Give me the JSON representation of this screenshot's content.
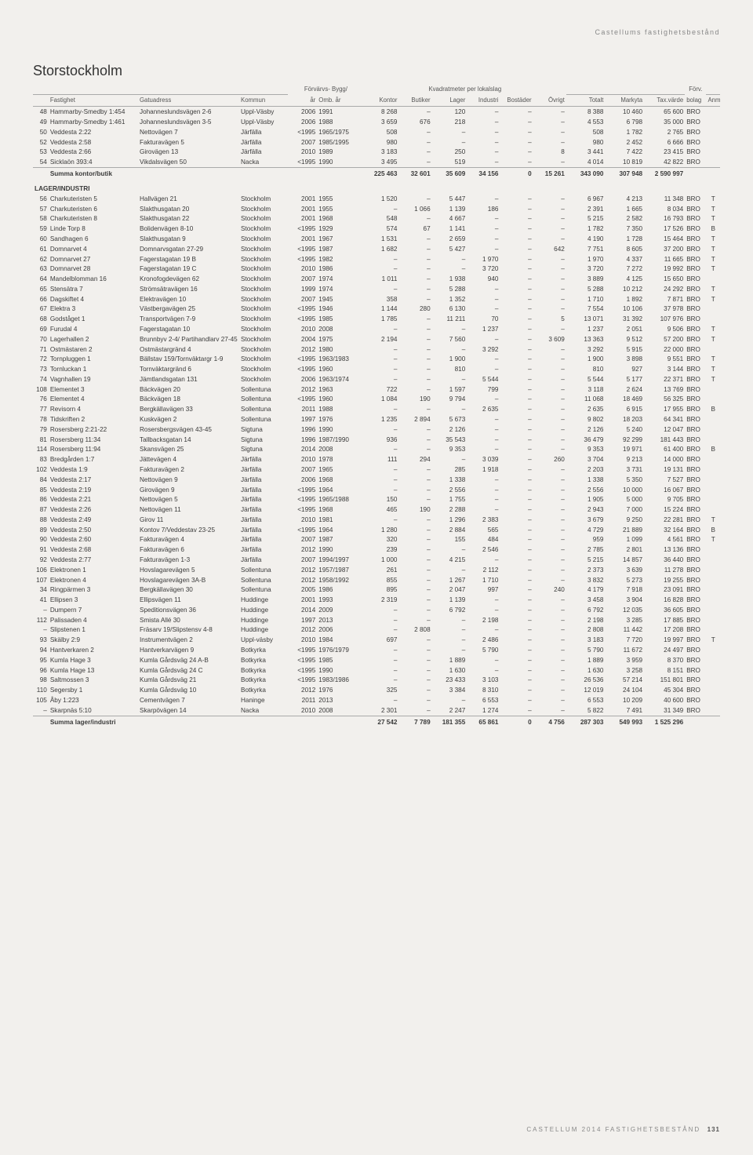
{
  "header_tag": "Castellums fastighetsbestånd",
  "region": "Storstockholm",
  "footer": "CASTELLUM 2014 FASTIGHETSBESTÅND",
  "page_num": "131",
  "col_groups": {
    "g1": "Förvärvs- Bygg/",
    "g2": "Kvadratmeter per lokalslag",
    "g3": "Förv."
  },
  "cols": {
    "fastighet": "Fastighet",
    "gata": "Gatuadress",
    "kommun": "Kommun",
    "ar": "år",
    "omb": "Omb. år",
    "kontor": "Kontor",
    "butiker": "Butiker",
    "lager": "Lager",
    "industri": "Industri",
    "bostader": "Bostäder",
    "ovrigt": "Övrigt",
    "totalt": "Totalt",
    "markyta": "Markyta",
    "taxv": "Tax.värde",
    "bolag": "bolag",
    "anm": "Anm"
  },
  "section_lager": "LAGER/INDUSTRI",
  "sum_kontor": "Summa kontor/butik",
  "sum_lager": "Summa lager/industri",
  "rows_top": [
    [
      "48",
      "Hammarby-Smedby 1:454",
      "Johanneslundsvägen 2-6",
      "Uppl-Väsby",
      "2006",
      "1991",
      "8 268",
      "–",
      "120",
      "–",
      "–",
      "–",
      "8 388",
      "10 460",
      "65 600",
      "BRO",
      ""
    ],
    [
      "49",
      "Hammarby-Smedby 1:461",
      "Johanneslundsvägen 3-5",
      "Uppl-Väsby",
      "2006",
      "1988",
      "3 659",
      "676",
      "218",
      "–",
      "–",
      "–",
      "4 553",
      "6 798",
      "35 000",
      "BRO",
      ""
    ],
    [
      "50",
      "Veddesta 2:22",
      "Nettovägen 7",
      "Järfälla",
      "<1995",
      "1965/1975",
      "508",
      "–",
      "–",
      "–",
      "–",
      "–",
      "508",
      "1 782",
      "2 765",
      "BRO",
      ""
    ],
    [
      "52",
      "Veddesta 2:58",
      "Fakturavägen 5",
      "Järfälla",
      "2007",
      "1985/1995",
      "980",
      "–",
      "–",
      "–",
      "–",
      "–",
      "980",
      "2 452",
      "6 666",
      "BRO",
      ""
    ],
    [
      "53",
      "Veddesta 2:66",
      "Girovägen 13",
      "Järfälla",
      "2010",
      "1989",
      "3 183",
      "–",
      "250",
      "–",
      "–",
      "8",
      "3 441",
      "7 422",
      "23 415",
      "BRO",
      ""
    ],
    [
      "54",
      "Sicklaön 393:4",
      "Vikdalsvägen 50",
      "Nacka",
      "<1995",
      "1990",
      "3 495",
      "–",
      "519",
      "–",
      "–",
      "–",
      "4 014",
      "10 819",
      "42 822",
      "BRO",
      ""
    ]
  ],
  "sum_top": [
    "",
    "",
    "",
    "",
    "",
    "225 463",
    "32 601",
    "35 609",
    "34 156",
    "0",
    "15 261",
    "343 090",
    "307 948",
    "2 590 997",
    "",
    ""
  ],
  "rows_lager": [
    [
      "56",
      "Charkuteristen 5",
      "Hallvägen 21",
      "Stockholm",
      "2001",
      "1955",
      "1 520",
      "–",
      "5 447",
      "–",
      "–",
      "–",
      "6 967",
      "4 213",
      "11 348",
      "BRO",
      "T"
    ],
    [
      "57",
      "Charkuteristen 6",
      "Slakthusgatan 20",
      "Stockholm",
      "2001",
      "1955",
      "–",
      "1 066",
      "1 139",
      "186",
      "–",
      "–",
      "2 391",
      "1 665",
      "8 034",
      "BRO",
      "T"
    ],
    [
      "58",
      "Charkuteristen 8",
      "Slakthusgatan 22",
      "Stockholm",
      "2001",
      "1968",
      "548",
      "–",
      "4 667",
      "–",
      "–",
      "–",
      "5 215",
      "2 582",
      "16 793",
      "BRO",
      "T"
    ],
    [
      "59",
      "Linde Torp 8",
      "Bolidenvägen 8-10",
      "Stockholm",
      "<1995",
      "1929",
      "574",
      "67",
      "1 141",
      "–",
      "–",
      "–",
      "1 782",
      "7 350",
      "17 526",
      "BRO",
      "B"
    ],
    [
      "60",
      "Sandhagen 6",
      "Slakthusgatan 9",
      "Stockholm",
      "2001",
      "1967",
      "1 531",
      "–",
      "2 659",
      "–",
      "–",
      "–",
      "4 190",
      "1 728",
      "15 464",
      "BRO",
      "T"
    ],
    [
      "61",
      "Domnarvet 4",
      "Domnarvsgatan 27-29",
      "Stockholm",
      "<1995",
      "1987",
      "1 682",
      "–",
      "5 427",
      "–",
      "–",
      "642",
      "7 751",
      "8 605",
      "37 200",
      "BRO",
      "T"
    ],
    [
      "62",
      "Domnarvet 27",
      "Fagerstagatan 19 B",
      "Stockholm",
      "<1995",
      "1982",
      "–",
      "–",
      "–",
      "1 970",
      "–",
      "–",
      "1 970",
      "4 337",
      "11 665",
      "BRO",
      "T"
    ],
    [
      "63",
      "Domnarvet 28",
      "Fagerstagatan 19 C",
      "Stockholm",
      "2010",
      "1986",
      "–",
      "–",
      "–",
      "3 720",
      "–",
      "–",
      "3 720",
      "7 272",
      "19 992",
      "BRO",
      "T"
    ],
    [
      "64",
      "Mandelblomman 16",
      "Kronofogdevägen 62",
      "Stockholm",
      "2007",
      "1974",
      "1 011",
      "–",
      "1 938",
      "940",
      "–",
      "–",
      "3 889",
      "4 125",
      "15 650",
      "BRO",
      ""
    ],
    [
      "65",
      "Stensätra 7",
      "Strömsätravägen 16",
      "Stockholm",
      "1999",
      "1974",
      "–",
      "–",
      "5 288",
      "–",
      "–",
      "–",
      "5 288",
      "10 212",
      "24 292",
      "BRO",
      "T"
    ],
    [
      "66",
      "Dagskiftet 4",
      "Elektravägen 10",
      "Stockholm",
      "2007",
      "1945",
      "358",
      "–",
      "1 352",
      "–",
      "–",
      "–",
      "1 710",
      "1 892",
      "7 871",
      "BRO",
      "T"
    ],
    [
      "67",
      "Elektra 3",
      "Västbergavägen 25",
      "Stockholm",
      "<1995",
      "1946",
      "1 144",
      "280",
      "6 130",
      "–",
      "–",
      "–",
      "7 554",
      "10 106",
      "37 978",
      "BRO",
      ""
    ],
    [
      "68",
      "Godståget 1",
      "Transportvägen 7-9",
      "Stockholm",
      "<1995",
      "1985",
      "1 785",
      "–",
      "11 211",
      "70",
      "–",
      "5",
      "13 071",
      "31 392",
      "107 976",
      "BRO",
      ""
    ],
    [
      "69",
      "Furudal 4",
      "Fagerstagatan 10",
      "Stockholm",
      "2010",
      "2008",
      "–",
      "–",
      "–",
      "1 237",
      "–",
      "–",
      "1 237",
      "2 051",
      "9 506",
      "BRO",
      "T"
    ],
    [
      "70",
      "Lagerhallen 2",
      "Brunnbyv 2-4/ Partihandlarv 27-45",
      "Stockholm",
      "2004",
      "1975",
      "2 194",
      "–",
      "7 560",
      "–",
      "–",
      "3 609",
      "13 363",
      "9 512",
      "57 200",
      "BRO",
      "T"
    ],
    [
      "71",
      "Ostmästaren 2",
      "Ostmästargränd 4",
      "Stockholm",
      "2012",
      "1980",
      "–",
      "–",
      "–",
      "3 292",
      "–",
      "–",
      "3 292",
      "5 915",
      "22 000",
      "BRO",
      ""
    ],
    [
      "72",
      "Tornpluggen 1",
      "Bällstav 159/Tornväktargr 1-9",
      "Stockholm",
      "<1995",
      "1963/1983",
      "–",
      "–",
      "1 900",
      "–",
      "–",
      "–",
      "1 900",
      "3 898",
      "9 551",
      "BRO",
      "T"
    ],
    [
      "73",
      "Tornluckan 1",
      "Tornväktargränd 6",
      "Stockholm",
      "<1995",
      "1960",
      "–",
      "–",
      "810",
      "–",
      "–",
      "–",
      "810",
      "927",
      "3 144",
      "BRO",
      "T"
    ],
    [
      "74",
      "Vagnhallen 19",
      "Jämtlandsgatan 131",
      "Stockholm",
      "2006",
      "1963/1974",
      "–",
      "–",
      "–",
      "5 544",
      "–",
      "–",
      "5 544",
      "5 177",
      "22 371",
      "BRO",
      "T"
    ],
    [
      "108",
      "Elementet 3",
      "Bäckvägen 20",
      "Sollentuna",
      "2012",
      "1963",
      "722",
      "–",
      "1 597",
      "799",
      "–",
      "–",
      "3 118",
      "2 624",
      "13 769",
      "BRO",
      ""
    ],
    [
      "76",
      "Elementet 4",
      "Bäckvägen 18",
      "Sollentuna",
      "<1995",
      "1960",
      "1 084",
      "190",
      "9 794",
      "–",
      "–",
      "–",
      "11 068",
      "18 469",
      "56 325",
      "BRO",
      ""
    ],
    [
      "77",
      "Revisorn 4",
      "Bergkällavägen 33",
      "Sollentuna",
      "2011",
      "1988",
      "–",
      "–",
      "–",
      "2 635",
      "–",
      "–",
      "2 635",
      "6 915",
      "17 955",
      "BRO",
      "B"
    ],
    [
      "78",
      "Tidskriften 2",
      "Kuskvägen 2",
      "Sollentuna",
      "1997",
      "1976",
      "1 235",
      "2 894",
      "5 673",
      "–",
      "–",
      "–",
      "9 802",
      "18 203",
      "64 341",
      "BRO",
      ""
    ],
    [
      "79",
      "Rosersberg 2:21-22",
      "Rosersbergsvägen 43-45",
      "Sigtuna",
      "1996",
      "1990",
      "–",
      "–",
      "2 126",
      "–",
      "–",
      "–",
      "2 126",
      "5 240",
      "12 047",
      "BRO",
      ""
    ],
    [
      "81",
      "Rosersberg 11:34",
      "Tallbacksgatan 14",
      "Sigtuna",
      "1996",
      "1987/1990",
      "936",
      "–",
      "35 543",
      "–",
      "–",
      "–",
      "36 479",
      "92 299",
      "181 443",
      "BRO",
      ""
    ],
    [
      "114",
      "Rosersberg 11:94",
      "Skansvägen 25",
      "Sigtuna",
      "2014",
      "2008",
      "–",
      "–",
      "9 353",
      "–",
      "–",
      "–",
      "9 353",
      "19 971",
      "61 400",
      "BRO",
      "B"
    ],
    [
      "83",
      "Bredgården 1:7",
      "Jättevägen 4",
      "Järfälla",
      "2010",
      "1978",
      "111",
      "294",
      "–",
      "3 039",
      "–",
      "260",
      "3 704",
      "9 213",
      "14 000",
      "BRO",
      ""
    ],
    [
      "102",
      "Veddesta 1:9",
      "Fakturavägen 2",
      "Järfälla",
      "2007",
      "1965",
      "–",
      "–",
      "285",
      "1 918",
      "–",
      "–",
      "2 203",
      "3 731",
      "19 131",
      "BRO",
      ""
    ],
    [
      "84",
      "Veddesta 2:17",
      "Nettovägen 9",
      "Järfälla",
      "2006",
      "1968",
      "–",
      "–",
      "1 338",
      "–",
      "–",
      "–",
      "1 338",
      "5 350",
      "7 527",
      "BRO",
      ""
    ],
    [
      "85",
      "Veddesta 2:19",
      "Girovägen 9",
      "Järfälla",
      "<1995",
      "1964",
      "–",
      "–",
      "2 556",
      "–",
      "–",
      "–",
      "2 556",
      "10 000",
      "16 067",
      "BRO",
      ""
    ],
    [
      "86",
      "Veddesta 2:21",
      "Nettovägen 5",
      "Järfälla",
      "<1995",
      "1965/1988",
      "150",
      "–",
      "1 755",
      "–",
      "–",
      "–",
      "1 905",
      "5 000",
      "9 705",
      "BRO",
      ""
    ],
    [
      "87",
      "Veddesta 2:26",
      "Nettovägen 11",
      "Järfälla",
      "<1995",
      "1968",
      "465",
      "190",
      "2 288",
      "–",
      "–",
      "–",
      "2 943",
      "7 000",
      "15 224",
      "BRO",
      ""
    ],
    [
      "88",
      "Veddesta 2:49",
      "Girov 11",
      "Järfälla",
      "2010",
      "1981",
      "–",
      "–",
      "1 296",
      "2 383",
      "–",
      "–",
      "3 679",
      "9 250",
      "22 281",
      "BRO",
      "T"
    ],
    [
      "89",
      "Veddesta 2:50",
      "Kontov 7/Veddestav 23-25",
      "Järfälla",
      "<1995",
      "1964",
      "1 280",
      "–",
      "2 884",
      "565",
      "–",
      "–",
      "4 729",
      "21 889",
      "32 164",
      "BRO",
      "B"
    ],
    [
      "90",
      "Veddesta 2:60",
      "Fakturavägen 4",
      "Järfälla",
      "2007",
      "1987",
      "320",
      "–",
      "155",
      "484",
      "–",
      "–",
      "959",
      "1 099",
      "4 561",
      "BRO",
      "T"
    ],
    [
      "91",
      "Veddesta 2:68",
      "Fakturavägen 6",
      "Järfälla",
      "2012",
      "1990",
      "239",
      "–",
      "–",
      "2 546",
      "–",
      "–",
      "2 785",
      "2 801",
      "13 136",
      "BRO",
      ""
    ],
    [
      "92",
      "Veddesta 2:77",
      "Fakturavägen 1-3",
      "Järfälla",
      "2007",
      "1994/1997",
      "1 000",
      "–",
      "4 215",
      "–",
      "–",
      "–",
      "5 215",
      "14 857",
      "36 440",
      "BRO",
      ""
    ],
    [
      "106",
      "Elektronen 1",
      "Hovslagarevägen 5",
      "Sollentuna",
      "2012",
      "1957/1987",
      "261",
      "–",
      "–",
      "2 112",
      "–",
      "–",
      "2 373",
      "3 639",
      "11 278",
      "BRO",
      ""
    ],
    [
      "107",
      "Elektronen 4",
      "Hovslagarevägen 3A-B",
      "Sollentuna",
      "2012",
      "1958/1992",
      "855",
      "–",
      "1 267",
      "1 710",
      "–",
      "–",
      "3 832",
      "5 273",
      "19 255",
      "BRO",
      ""
    ],
    [
      "34",
      "Ringpärmen 3",
      "Bergkällavägen 30",
      "Sollentuna",
      "2005",
      "1986",
      "895",
      "–",
      "2 047",
      "997",
      "–",
      "240",
      "4 179",
      "7 918",
      "23 091",
      "BRO",
      ""
    ],
    [
      "41",
      "Ellipsen 3",
      "Ellipsvägen 11",
      "Huddinge",
      "2001",
      "1993",
      "2 319",
      "–",
      "1 139",
      "–",
      "–",
      "–",
      "3 458",
      "3 904",
      "16 828",
      "BRO",
      ""
    ],
    [
      "–",
      "Dumpern 7",
      "Speditionsvägen 36",
      "Huddinge",
      "2014",
      "2009",
      "–",
      "–",
      "6 792",
      "–",
      "–",
      "–",
      "6 792",
      "12 035",
      "36 605",
      "BRO",
      ""
    ],
    [
      "112",
      "Palissaden 4",
      "Smista Allé 30",
      "Huddinge",
      "1997",
      "2013",
      "–",
      "–",
      "–",
      "2 198",
      "–",
      "–",
      "2 198",
      "3 285",
      "17 885",
      "BRO",
      ""
    ],
    [
      "–",
      "Slipstenen 1",
      "Fräsarv 19/Slipstensv 4-8",
      "Huddinge",
      "2012",
      "2006",
      "–",
      "2 808",
      "–",
      "–",
      "–",
      "–",
      "2 808",
      "11 442",
      "17 208",
      "BRO",
      ""
    ],
    [
      "93",
      "Skälby 2:9",
      "Instrumentvägen 2",
      "Uppl-väsby",
      "2010",
      "1984",
      "697",
      "–",
      "–",
      "2 486",
      "–",
      "–",
      "3 183",
      "7 720",
      "19 997",
      "BRO",
      "T"
    ],
    [
      "94",
      "Hantverkaren 2",
      "Hantverkarvägen 9",
      "Botkyrka",
      "<1995",
      "1976/1979",
      "–",
      "–",
      "–",
      "5 790",
      "–",
      "–",
      "5 790",
      "11 672",
      "24 497",
      "BRO",
      ""
    ],
    [
      "95",
      "Kumla Hage 3",
      "Kumla Gårdsväg 24 A-B",
      "Botkyrka",
      "<1995",
      "1985",
      "–",
      "–",
      "1 889",
      "–",
      "–",
      "–",
      "1 889",
      "3 959",
      "8 370",
      "BRO",
      ""
    ],
    [
      "96",
      "Kumla Hage 13",
      "Kumla Gårdsväg 24 C",
      "Botkyrka",
      "<1995",
      "1990",
      "–",
      "–",
      "1 630",
      "–",
      "–",
      "–",
      "1 630",
      "3 258",
      "8 151",
      "BRO",
      ""
    ],
    [
      "98",
      "Saltmossen 3",
      "Kumla Gårdsväg 21",
      "Botkyrka",
      "<1995",
      "1983/1986",
      "–",
      "–",
      "23 433",
      "3 103",
      "–",
      "–",
      "26 536",
      "57 214",
      "151 801",
      "BRO",
      ""
    ],
    [
      "110",
      "Segersby 1",
      "Kumla Gårdsväg 10",
      "Botkyrka",
      "2012",
      "1976",
      "325",
      "–",
      "3 384",
      "8 310",
      "–",
      "–",
      "12 019",
      "24 104",
      "45 304",
      "BRO",
      ""
    ],
    [
      "105",
      "Åby 1:223",
      "Cementvägen 7",
      "Haninge",
      "2011",
      "2013",
      "–",
      "–",
      "–",
      "6 553",
      "–",
      "–",
      "6 553",
      "10 209",
      "40 600",
      "BRO",
      ""
    ],
    [
      "–",
      "Skarpnäs 5:10",
      "Skarpövägen 14",
      "Nacka",
      "2010",
      "2008",
      "2 301",
      "–",
      "2 247",
      "1 274",
      "–",
      "–",
      "5 822",
      "7 491",
      "31 349",
      "BRO",
      ""
    ]
  ],
  "sum_lager_row": [
    "",
    "",
    "",
    "",
    "",
    "27 542",
    "7 789",
    "181 355",
    "65 861",
    "0",
    "4 756",
    "287 303",
    "549 993",
    "1 525 296",
    "",
    ""
  ]
}
